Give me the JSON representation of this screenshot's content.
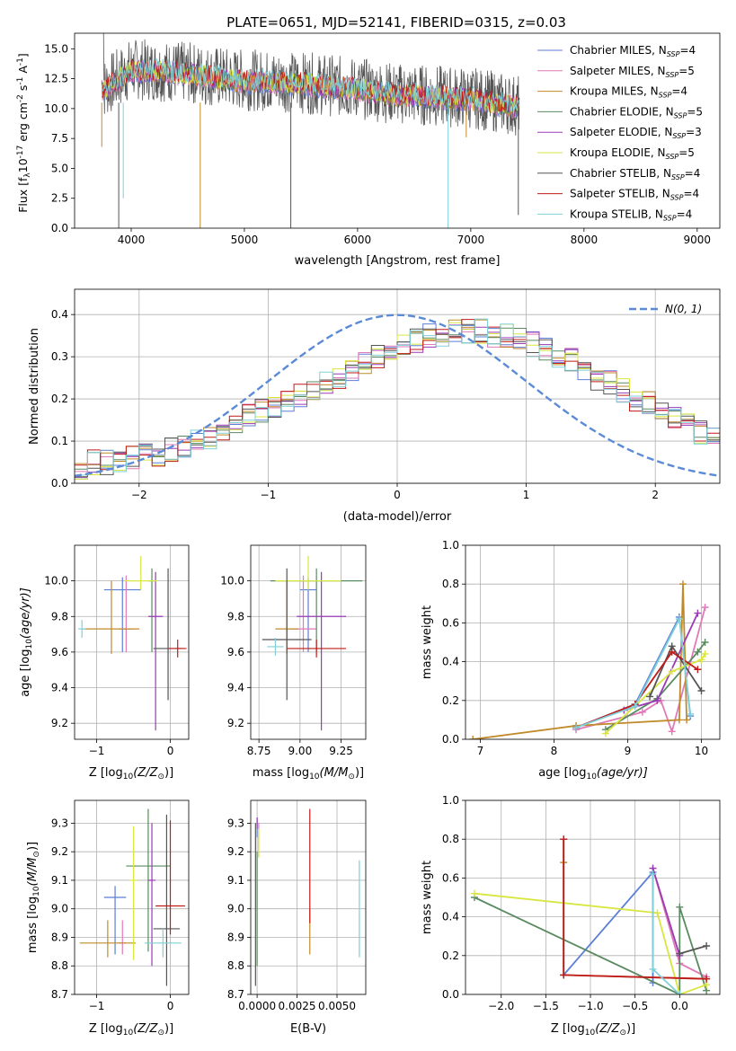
{
  "title": "PLATE=0651, MJD=52141, FIBERID=0315, z=0.03",
  "colors": [
    "#5b7fd6",
    "#e07ab8",
    "#c08a2a",
    "#5a8a60",
    "#9a3ab5",
    "#d8e640",
    "#555555",
    "#c01a1a",
    "#7fd0d8"
  ],
  "legend_names": [
    "Chabrier MILES",
    "Salpeter MILES",
    "Kroupa MILES",
    "Chabrier ELODIE",
    "Salpeter ELODIE",
    "Kroupa ELODIE",
    "Chabrier STELIB",
    "Salpeter STELIB",
    "Kroupa STELIB"
  ],
  "legend_nssp": [
    "4",
    "5",
    "4",
    "5",
    "3",
    "5",
    "4",
    "4",
    "4"
  ],
  "chart_data": [
    {
      "type": "line",
      "name": "spectrum",
      "xlabel": "wavelength [Angstrom, rest frame]",
      "ylabel_main": "Flux [f",
      "ylabel_rest": "10",
      "ylabel_exp": "-17",
      "ylabel_unit": " erg cm",
      "ylabel_e2": "-2",
      "ylabel_s": " s",
      "ylabel_e1": "-1",
      "ylabel_a": " A",
      "ylabel_e1b": "-1",
      "xlim": [
        3500,
        9200
      ],
      "ylim": [
        0,
        16.3
      ],
      "xticks": [
        "4000",
        "5000",
        "6000",
        "7000",
        "8000",
        "9000"
      ],
      "xtick_values": [
        4000,
        5000,
        6000,
        7000,
        8000,
        9000
      ],
      "yticks": [
        "0.0",
        "2.5",
        "5.0",
        "7.5",
        "10.0",
        "12.5",
        "15.0"
      ],
      "ytick_values": [
        0,
        2.5,
        5,
        7.5,
        10,
        12.5,
        15
      ],
      "continuum_x": [
        3740,
        3900,
        4000,
        4200,
        4500,
        4800,
        5000,
        5300,
        5600,
        6000,
        6300,
        6600,
        7000,
        7400
      ],
      "continuum_y": [
        11.5,
        12.5,
        13.2,
        13.1,
        12.9,
        12.5,
        12.3,
        12.2,
        12.0,
        11.6,
        11.2,
        11.0,
        10.8,
        10.2
      ],
      "dips": [
        [
          3740,
          6.8
        ],
        [
          3890,
          0
        ],
        [
          3930,
          2.5
        ],
        [
          4610,
          0
        ],
        [
          5410,
          0
        ],
        [
          6800,
          0
        ],
        [
          6960,
          7.6
        ],
        [
          7420,
          1.1
        ]
      ]
    },
    {
      "type": "bar",
      "name": "residual-histogram",
      "xlabel": "(data-model)/error",
      "ylabel": "Normed distribution",
      "legend_label": "N(0, 1)",
      "xlim": [
        -2.5,
        2.5
      ],
      "ylim": [
        0,
        0.46
      ],
      "xticks": [
        "−2",
        "−1",
        "0",
        "1",
        "2"
      ],
      "xtick_values": [
        -2,
        -1,
        0,
        1,
        2
      ],
      "yticks": [
        "0.0",
        "0.1",
        "0.2",
        "0.3",
        "0.4"
      ],
      "ytick_values": [
        0,
        0.1,
        0.2,
        0.3,
        0.4
      ],
      "bin_edges_start": -2.5,
      "bin_width": 0.1,
      "base_values": [
        0.04,
        0.05,
        0.05,
        0.05,
        0.06,
        0.07,
        0.07,
        0.08,
        0.09,
        0.1,
        0.11,
        0.13,
        0.14,
        0.16,
        0.17,
        0.18,
        0.2,
        0.21,
        0.22,
        0.24,
        0.25,
        0.27,
        0.29,
        0.3,
        0.32,
        0.33,
        0.34,
        0.35,
        0.35,
        0.36,
        0.36,
        0.36,
        0.35,
        0.35,
        0.34,
        0.33,
        0.32,
        0.3,
        0.29,
        0.27,
        0.25,
        0.24,
        0.22,
        0.2,
        0.19,
        0.17,
        0.15,
        0.14,
        0.12,
        0.11
      ],
      "gaussian_mu": 0,
      "gaussian_sigma": 1
    },
    {
      "type": "scatter",
      "name": "age-vs-metallicity",
      "xlabel": "Z [log",
      "xlabel_sub": "10",
      "xlabel_rest": "(Z/Z",
      "xlabel_sub2": "⊙",
      "xlabel_end": ")]",
      "ylabel": "age  [log",
      "ylabel_sub": "10",
      "ylabel_rest": "(age/yr)]",
      "xlim": [
        -1.3,
        0.25
      ],
      "ylim": [
        9.11,
        10.2
      ],
      "xticks": [
        "−1",
        "0"
      ],
      "xtick_values": [
        -1,
        0
      ],
      "yticks": [
        "9.2",
        "9.4",
        "9.6",
        "9.8",
        "10.0"
      ],
      "ytick_values": [
        9.2,
        9.4,
        9.6,
        9.8,
        10.0
      ],
      "points": [
        {
          "x": -0.65,
          "y": 9.95,
          "xerr": 0.25,
          "yerr_lo": 0.35,
          "yerr_hi": 0.07
        },
        {
          "x": -0.6,
          "y": 9.73,
          "xerr": 0.1,
          "yerr_lo": 0.13,
          "yerr_hi": 0.3
        },
        {
          "x": -0.8,
          "y": 9.73,
          "xerr": 0.38,
          "yerr_lo": 0.14,
          "yerr_hi": 0.27
        },
        {
          "x": -0.25,
          "y": 10.0,
          "xerr": 0.05,
          "yerr_lo": 0.4,
          "yerr_hi": 0.07
        },
        {
          "x": -0.2,
          "y": 9.8,
          "xerr": 0.1,
          "yerr_lo": 0.64,
          "yerr_hi": 0.25
        },
        {
          "x": -0.4,
          "y": 10.0,
          "xerr": 0.22,
          "yerr_lo": 0.05,
          "yerr_hi": 0.14
        },
        {
          "x": -0.03,
          "y": 9.62,
          "xerr": 0.2,
          "yerr_lo": 0.29,
          "yerr_hi": 0.45
        },
        {
          "x": 0.1,
          "y": 9.62,
          "xerr": 0.12,
          "yerr_lo": 0.05,
          "yerr_hi": 0.05
        },
        {
          "x": -1.2,
          "y": 9.73,
          "xerr": 0.05,
          "yerr_lo": 0.05,
          "yerr_hi": 0.05
        }
      ]
    },
    {
      "type": "scatter",
      "name": "age-vs-mass",
      "xlabel": "mass [log",
      "xlabel_sub": "10",
      "xlabel_rest": "(M/M",
      "xlabel_sub2": "⊙",
      "xlabel_end": ")]",
      "xlim": [
        8.7,
        9.4
      ],
      "ylim": [
        9.11,
        10.2
      ],
      "xticks": [
        "8.75",
        "9.00",
        "9.25"
      ],
      "xtick_values": [
        8.75,
        9.0,
        9.25
      ],
      "yticks": [
        "9.2",
        "9.4",
        "9.6",
        "9.8",
        "10.0"
      ],
      "ytick_values": [
        9.2,
        9.4,
        9.6,
        9.8,
        10.0
      ],
      "points": [
        {
          "x": 9.05,
          "y": 9.95,
          "xerr": 0.05,
          "yerr_lo": 0.35,
          "yerr_hi": 0.07
        },
        {
          "x": 9.02,
          "y": 9.73,
          "xerr": 0.08,
          "yerr_lo": 0.13,
          "yerr_hi": 0.3
        },
        {
          "x": 8.92,
          "y": 9.73,
          "xerr": 0.07,
          "yerr_lo": 0.14,
          "yerr_hi": 0.27
        },
        {
          "x": 9.1,
          "y": 10.0,
          "xerr": 0.28,
          "yerr_lo": 0.4,
          "yerr_hi": 0.07
        },
        {
          "x": 9.13,
          "y": 9.8,
          "xerr": 0.15,
          "yerr_lo": 0.64,
          "yerr_hi": 0.25
        },
        {
          "x": 9.05,
          "y": 10.0,
          "xerr": 0.2,
          "yerr_lo": 0.05,
          "yerr_hi": 0.14
        },
        {
          "x": 8.92,
          "y": 9.67,
          "xerr": 0.15,
          "yerr_lo": 0.34,
          "yerr_hi": 0.4
        },
        {
          "x": 9.1,
          "y": 9.62,
          "xerr": 0.18,
          "yerr_lo": 0.05,
          "yerr_hi": 0.05
        },
        {
          "x": 8.85,
          "y": 9.63,
          "xerr": 0.05,
          "yerr_lo": 0.05,
          "yerr_hi": 0.05
        }
      ]
    },
    {
      "type": "line",
      "name": "mass-weight-vs-age",
      "xlabel": "age  [log",
      "xlabel_sub": "10",
      "xlabel_rest": "(age/yr)]",
      "ylabel": "mass weight",
      "xlim": [
        6.8,
        10.25
      ],
      "ylim": [
        0,
        1.0
      ],
      "xticks": [
        "7",
        "8",
        "9",
        "10"
      ],
      "xtick_values": [
        7,
        8,
        9,
        10
      ],
      "yticks": [
        "0.0",
        "0.2",
        "0.4",
        "0.6",
        "0.8",
        "1.0"
      ],
      "ytick_values": [
        0,
        0.2,
        0.4,
        0.6,
        0.8,
        1.0
      ],
      "series": [
        {
          "x": [
            8.3,
            9.1,
            9.7,
            9.85
          ],
          "y": [
            0.06,
            0.18,
            0.63,
            0.12
          ]
        },
        {
          "x": [
            8.3,
            9.2,
            9.45,
            9.6,
            10.05
          ],
          "y": [
            0.05,
            0.14,
            0.2,
            0.04,
            0.68
          ]
        },
        {
          "x": [
            6.9,
            8.3,
            9.7,
            9.75,
            9.8
          ],
          "y": [
            0.0,
            0.07,
            0.1,
            0.8,
            0.1
          ]
        },
        {
          "x": [
            8.7,
            9.4,
            9.95,
            10.05
          ],
          "y": [
            0.05,
            0.21,
            0.45,
            0.5
          ]
        },
        {
          "x": [
            8.95,
            9.4,
            9.95
          ],
          "y": [
            0.15,
            0.2,
            0.65
          ]
        },
        {
          "x": [
            8.7,
            9.6,
            10.0,
            10.05
          ],
          "y": [
            0.03,
            0.35,
            0.41,
            0.44
          ]
        },
        {
          "x": [
            9.3,
            9.6,
            10.0
          ],
          "y": [
            0.22,
            0.48,
            0.25
          ]
        },
        {
          "x": [
            8.3,
            9.1,
            9.6,
            9.95
          ],
          "y": [
            0.06,
            0.18,
            0.45,
            0.36
          ]
        },
        {
          "x": [
            8.3,
            9.1,
            9.7,
            9.85
          ],
          "y": [
            0.06,
            0.17,
            0.62,
            0.13
          ]
        }
      ]
    },
    {
      "type": "scatter",
      "name": "mass-vs-metallicity",
      "xlabel": "Z [log",
      "xlabel_sub": "10",
      "xlabel_rest": "(Z/Z",
      "xlabel_sub2": "⊙",
      "xlabel_end": ")]",
      "ylabel": "mass [log",
      "ylabel_sub": "10",
      "ylabel_rest": "(M/M",
      "ylabel_sub2": "⊙",
      "ylabel_end": ")]",
      "xlim": [
        -1.3,
        0.25
      ],
      "ylim": [
        8.7,
        9.38
      ],
      "xticks": [
        "−1",
        "0"
      ],
      "xtick_values": [
        -1,
        0
      ],
      "yticks": [
        "8.7",
        "8.8",
        "8.9",
        "9.0",
        "9.1",
        "9.2",
        "9.3"
      ],
      "ytick_values": [
        8.7,
        8.8,
        8.9,
        9.0,
        9.1,
        9.2,
        9.3
      ],
      "points": [
        {
          "x": -0.75,
          "y": 9.04,
          "xerr": 0.15,
          "yerr_lo": 0.2,
          "yerr_hi": 0.04
        },
        {
          "x": -0.65,
          "y": 8.88,
          "xerr": 0.05,
          "yerr_lo": 0.04,
          "yerr_hi": 0.08
        },
        {
          "x": -0.85,
          "y": 8.88,
          "xerr": 0.38,
          "yerr_lo": 0.05,
          "yerr_hi": 0.08
        },
        {
          "x": -0.3,
          "y": 9.15,
          "xerr": 0.3,
          "yerr_lo": 0.3,
          "yerr_hi": 0.2
        },
        {
          "x": -0.25,
          "y": 9.1,
          "xerr": 0.05,
          "yerr_lo": 0.3,
          "yerr_hi": 0.2
        },
        {
          "x": -0.5,
          "y": 9.1,
          "xerr": 0.05,
          "yerr_lo": 0.28,
          "yerr_hi": 0.19
        },
        {
          "x": -0.05,
          "y": 8.93,
          "xerr": 0.18,
          "yerr_lo": 0.2,
          "yerr_hi": 0.4
        },
        {
          "x": 0.0,
          "y": 9.01,
          "xerr": 0.2,
          "yerr_lo": 0.1,
          "yerr_hi": 0.3
        },
        {
          "x": -0.1,
          "y": 8.88,
          "xerr": 0.25,
          "yerr_lo": 0.05,
          "yerr_hi": 0.05
        }
      ]
    },
    {
      "type": "scatter",
      "name": "mass-vs-ebv",
      "xlabel": "E(B-V)",
      "xlim": [
        -0.0004,
        0.0068
      ],
      "ylim": [
        8.7,
        9.38
      ],
      "xticks": [
        "0.0000",
        "0.0025",
        "0.0050"
      ],
      "xtick_values": [
        0,
        0.0025,
        0.005
      ],
      "yticks": [
        "8.7",
        "8.8",
        "8.9",
        "9.0",
        "9.1",
        "9.2",
        "9.3"
      ],
      "ytick_values": [
        8.7,
        8.8,
        8.9,
        9.0,
        9.1,
        9.2,
        9.3
      ],
      "points": [
        {
          "x": 0.0,
          "y": 9.3,
          "xerr": 0,
          "yerr_lo": 0.05,
          "yerr_hi": 0.02
        },
        {
          "x": 0.0001,
          "y": 9.25,
          "xerr": 0,
          "yerr_lo": 0.07,
          "yerr_hi": 0.05
        },
        {
          "x": 0.0033,
          "y": 8.9,
          "xerr": 0,
          "yerr_lo": 0.06,
          "yerr_hi": 0.1
        },
        {
          "x": 0.0,
          "y": 9.0,
          "xerr": 0,
          "yerr_lo": 0.2,
          "yerr_hi": 0.2
        },
        {
          "x": 0.0,
          "y": 9.3,
          "xerr": 0,
          "yerr_lo": 0.02,
          "yerr_hi": 0.02
        },
        {
          "x": 0.0001,
          "y": 9.25,
          "xerr": 0,
          "yerr_lo": 0.07,
          "yerr_hi": 0.03
        },
        {
          "x": -0.0001,
          "y": 9.0,
          "xerr": 0,
          "yerr_lo": 0.27,
          "yerr_hi": 0.3
        },
        {
          "x": 0.0033,
          "y": 9.1,
          "xerr": 0,
          "yerr_lo": 0.15,
          "yerr_hi": 0.25
        },
        {
          "x": 0.0064,
          "y": 9.0,
          "xerr": 0,
          "yerr_lo": 0.17,
          "yerr_hi": 0.17
        }
      ]
    },
    {
      "type": "line",
      "name": "mass-weight-vs-metallicity",
      "xlabel": "Z [log",
      "xlabel_sub": "10",
      "xlabel_rest": "(Z/Z",
      "xlabel_sub2": "⊙",
      "xlabel_end": ")]",
      "ylabel": "mass weight",
      "xlim": [
        -2.4,
        0.45
      ],
      "ylim": [
        0,
        1.0
      ],
      "xticks": [
        "−2.0",
        "−1.5",
        "−1.0",
        "−0.5",
        "0.0"
      ],
      "xtick_values": [
        -2.0,
        -1.5,
        -1.0,
        -0.5,
        0.0
      ],
      "yticks": [
        "0.0",
        "0.2",
        "0.4",
        "0.6",
        "0.8",
        "1.0"
      ],
      "ytick_values": [
        0,
        0.2,
        0.4,
        0.6,
        0.8,
        1.0
      ],
      "series": [
        {
          "x": [
            -1.3,
            -1.3,
            -0.3,
            -0.3
          ],
          "y": [
            0.8,
            0.1,
            0.63,
            0.06
          ]
        },
        {
          "x": [
            -0.3,
            0.0,
            0.3
          ],
          "y": [
            0.65,
            0.16,
            0.09
          ]
        },
        {
          "x": [
            -1.3,
            -1.3,
            -1.3,
            0.3
          ],
          "y": [
            0.8,
            0.68,
            0.1,
            0.08
          ]
        },
        {
          "x": [
            -2.3,
            0.0,
            0.0,
            0.3
          ],
          "y": [
            0.5,
            0.0,
            0.45,
            0.02
          ]
        },
        {
          "x": [
            -0.3,
            0.0
          ],
          "y": [
            0.65,
            0.2
          ]
        },
        {
          "x": [
            -2.3,
            -0.25,
            0.0,
            0.3
          ],
          "y": [
            0.52,
            0.42,
            0.0,
            0.05
          ]
        },
        {
          "x": [
            0.0,
            0.3
          ],
          "y": [
            0.21,
            0.25
          ]
        },
        {
          "x": [
            -1.3,
            -1.3,
            0.3
          ],
          "y": [
            0.8,
            0.1,
            0.08
          ]
        },
        {
          "x": [
            -0.3,
            -0.3,
            0.0
          ],
          "y": [
            0.62,
            0.13,
            0.0
          ]
        }
      ]
    }
  ]
}
